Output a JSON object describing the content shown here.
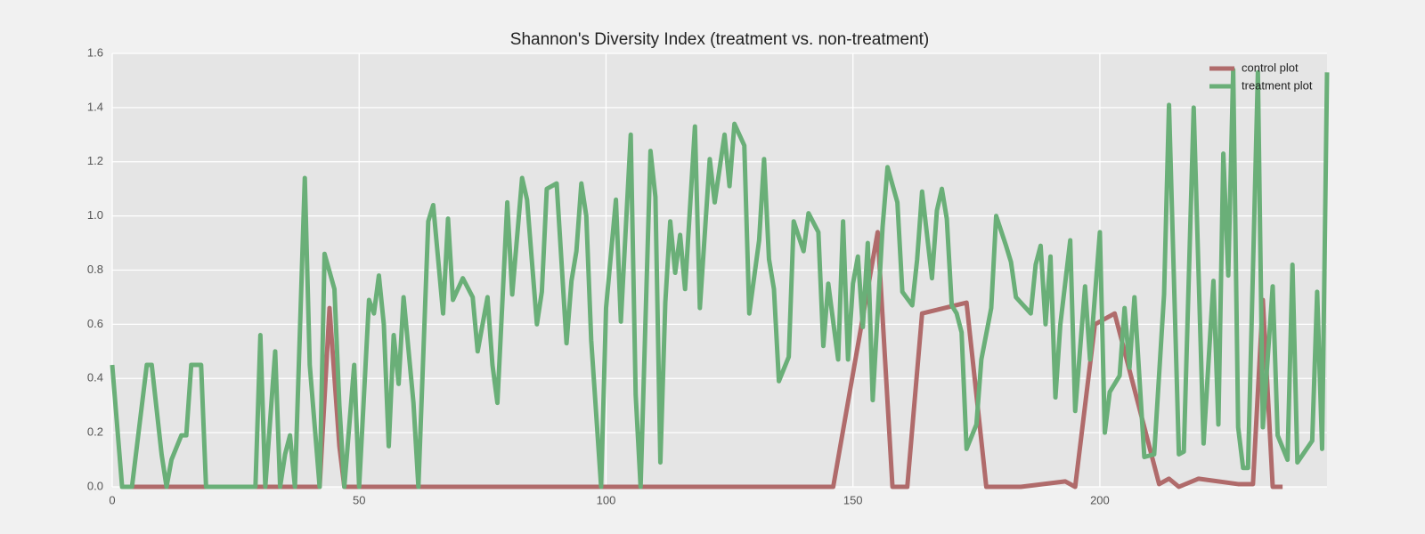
{
  "chart_data": {
    "type": "line",
    "title": "Shannon's Diversity Index (treatment vs. non-treatment)",
    "xlim": [
      0,
      246
    ],
    "ylim": [
      0,
      1.6
    ],
    "xticks": [
      0,
      50,
      100,
      150,
      200
    ],
    "yticks": [
      {
        "value": 0,
        "label": "0.0"
      },
      0.2,
      0.4,
      0.6,
      0.8,
      {
        "value": 1,
        "label": "1.0"
      },
      1.2,
      1.4,
      1.6
    ],
    "grid": true,
    "legend": "upper right",
    "series": [
      {
        "name": "control plot",
        "color": "#b06b6b",
        "x": [
          2,
          42,
          44,
          46,
          47,
          146,
          155,
          158,
          161,
          164,
          173,
          177,
          184,
          193,
          195,
          199,
          203,
          212,
          214,
          216,
          220,
          228,
          231,
          233,
          235,
          237
        ],
        "values": [
          0,
          0,
          0.66,
          0.15,
          0,
          0,
          0.94,
          0,
          0,
          0.64,
          0.68,
          0,
          0,
          0.02,
          0,
          0.6,
          0.64,
          0.01,
          0.03,
          0,
          0.03,
          0.01,
          0.01,
          0.69,
          0,
          0
        ]
      },
      {
        "name": "treatment plot",
        "color": "#6aaf78",
        "x": [
          0,
          2,
          4,
          7,
          8,
          10,
          11,
          12,
          14,
          15,
          16,
          18,
          19,
          29,
          30,
          31,
          33,
          34,
          35,
          36,
          37,
          39,
          40,
          42,
          43,
          45,
          46,
          47,
          49,
          50,
          52,
          53,
          54,
          55,
          56,
          57,
          58,
          59,
          61,
          62,
          64,
          65,
          67,
          68,
          69,
          71,
          73,
          74,
          76,
          77,
          78,
          80,
          81,
          83,
          84,
          86,
          87,
          88,
          90,
          92,
          93,
          94,
          95,
          96,
          97,
          99,
          100,
          102,
          103,
          105,
          106,
          107,
          109,
          110,
          111,
          112,
          113,
          114,
          115,
          116,
          118,
          119,
          121,
          122,
          124,
          125,
          126,
          128,
          129,
          131,
          132,
          133,
          134,
          135,
          137,
          138,
          140,
          141,
          143,
          144,
          145,
          147,
          148,
          149,
          150,
          151,
          152,
          153,
          154,
          156,
          157,
          159,
          160,
          162,
          163,
          164,
          166,
          167,
          168,
          169,
          170,
          171,
          172,
          173,
          175,
          176,
          178,
          179,
          181,
          182,
          183,
          185,
          186,
          187,
          188,
          189,
          190,
          191,
          192,
          194,
          195,
          197,
          198,
          200,
          201,
          202,
          204,
          205,
          206,
          207,
          209,
          211,
          213,
          214,
          216,
          217,
          219,
          221,
          223,
          224,
          225,
          226,
          227,
          228,
          229,
          230,
          232,
          233,
          235,
          236,
          238,
          239,
          240,
          243,
          244,
          245,
          246
        ],
        "values": [
          0.45,
          0,
          0,
          0.45,
          0.45,
          0.12,
          0,
          0.1,
          0.19,
          0.19,
          0.45,
          0.45,
          0,
          0,
          0.56,
          0,
          0.5,
          0,
          0.12,
          0.19,
          0,
          1.14,
          0.45,
          0,
          0.86,
          0.73,
          0.3,
          0,
          0.45,
          0,
          0.69,
          0.64,
          0.78,
          0.6,
          0.15,
          0.56,
          0.38,
          0.7,
          0.31,
          0,
          0.98,
          1.04,
          0.64,
          0.99,
          0.69,
          0.77,
          0.7,
          0.5,
          0.7,
          0.45,
          0.31,
          1.05,
          0.71,
          1.14,
          1.06,
          0.6,
          0.72,
          1.1,
          1.12,
          0.53,
          0.76,
          0.87,
          1.12,
          1.0,
          0.54,
          0,
          0.66,
          1.06,
          0.61,
          1.3,
          0.34,
          0,
          1.24,
          1.07,
          0.09,
          0.68,
          0.98,
          0.79,
          0.93,
          0.73,
          1.33,
          0.66,
          1.21,
          1.05,
          1.3,
          1.11,
          1.34,
          1.26,
          0.64,
          0.91,
          1.21,
          0.84,
          0.73,
          0.39,
          0.48,
          0.98,
          0.87,
          1.01,
          0.94,
          0.52,
          0.75,
          0.47,
          0.98,
          0.47,
          0.75,
          0.85,
          0.59,
          0.9,
          0.32,
          0.96,
          1.18,
          1.05,
          0.72,
          0.67,
          0.84,
          1.09,
          0.77,
          1.02,
          1.1,
          0.99,
          0.67,
          0.64,
          0.57,
          0.14,
          0.23,
          0.47,
          0.66,
          1.0,
          0.89,
          0.83,
          0.7,
          0.66,
          0.64,
          0.82,
          0.89,
          0.6,
          0.85,
          0.33,
          0.6,
          0.91,
          0.28,
          0.74,
          0.47,
          0.94,
          0.2,
          0.35,
          0.41,
          0.66,
          0.44,
          0.7,
          0.11,
          0.12,
          0.71,
          1.41,
          0.12,
          0.13,
          1.4,
          0.16,
          0.76,
          0.23,
          1.23,
          0.78,
          1.54,
          0.22,
          0.07,
          0.07,
          1.53,
          0.22,
          0.74,
          0.19,
          0.1,
          0.82,
          0.09,
          0.17,
          0.72,
          0.14,
          1.53
        ]
      }
    ]
  }
}
